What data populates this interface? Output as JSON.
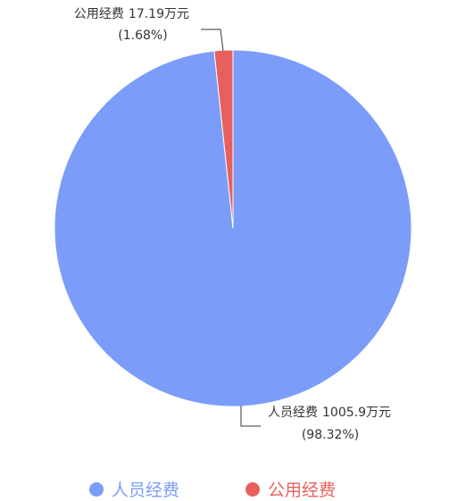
{
  "chart_data": {
    "type": "pie",
    "categories": [
      "人员经费",
      "公用经费"
    ],
    "values": [
      1005.9,
      17.19
    ],
    "value_labels": [
      "1005.9万元",
      "17.19万元"
    ],
    "percent_labels": [
      "(98.32%)",
      "(1.68%)"
    ],
    "colors": [
      "#7b9cf9",
      "#e8605e"
    ],
    "legend": "bottom"
  }
}
